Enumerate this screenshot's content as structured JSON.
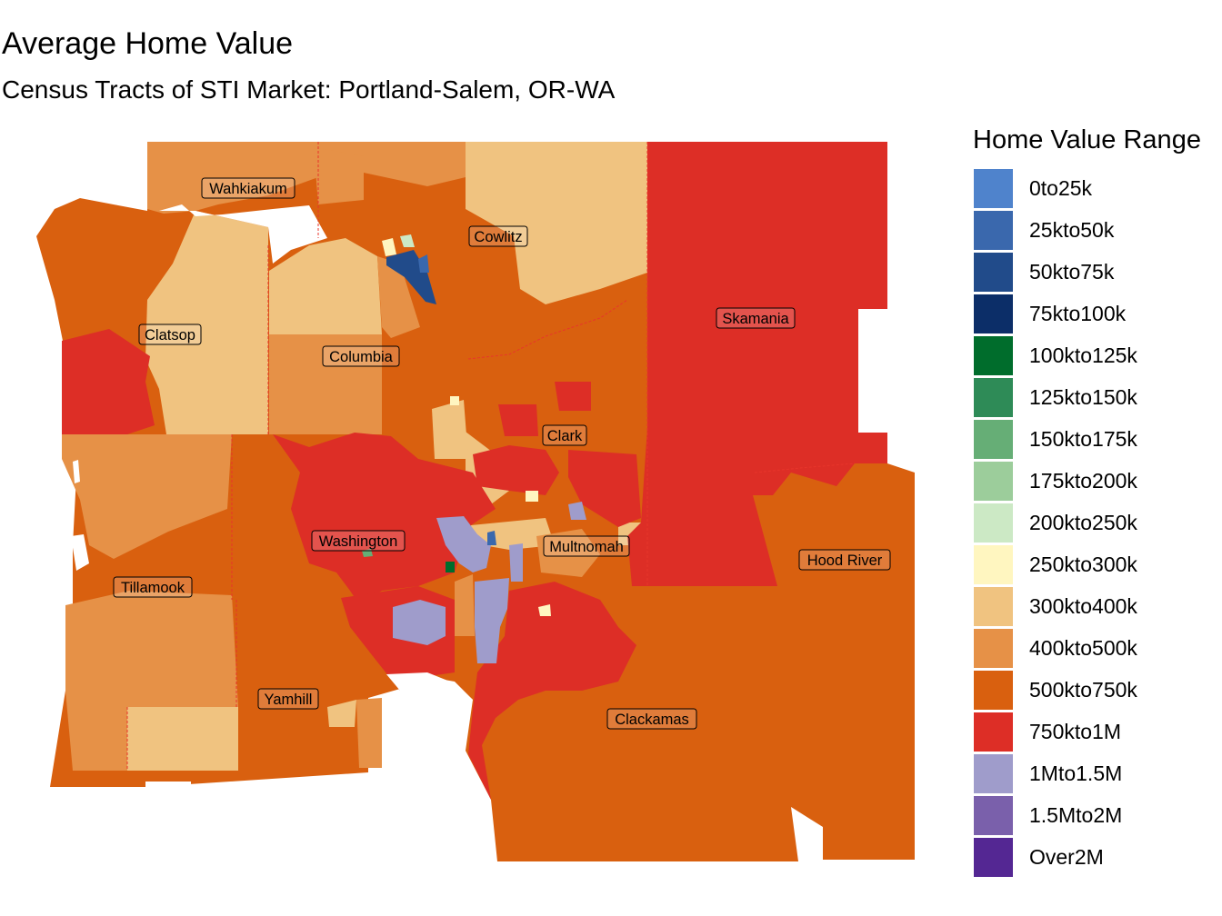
{
  "title": "Average Home Value",
  "subtitle": "Census Tracts of STI Market: Portland-Salem, OR-WA",
  "legend": {
    "title": "Home Value Range",
    "items": [
      {
        "label": "0to25k",
        "color": "#4f83cc"
      },
      {
        "label": "25kto50k",
        "color": "#3a68ad"
      },
      {
        "label": "50kto75k",
        "color": "#214b8a"
      },
      {
        "label": "75kto100k",
        "color": "#0c2e68"
      },
      {
        "label": "100kto125k",
        "color": "#006d2c"
      },
      {
        "label": "125kto150k",
        "color": "#2e8b57"
      },
      {
        "label": "150kto175k",
        "color": "#66ae76"
      },
      {
        "label": "175kto200k",
        "color": "#9ccd9b"
      },
      {
        "label": "200kto250k",
        "color": "#cce9c5"
      },
      {
        "label": "250kto300k",
        "color": "#fff6c0"
      },
      {
        "label": "300kto400k",
        "color": "#f0c380"
      },
      {
        "label": "400kto500k",
        "color": "#e69147"
      },
      {
        "label": "500kto750k",
        "color": "#d9600f"
      },
      {
        "label": "750kto1M",
        "color": "#dd2e26"
      },
      {
        "label": "1Mto1.5M",
        "color": "#9f9ccb"
      },
      {
        "label": "1.5Mto2M",
        "color": "#7a60ab"
      },
      {
        "label": "Over2M",
        "color": "#542793"
      }
    ]
  },
  "counties": {
    "wahkiakum": "Wahkiakum",
    "cowlitz": "Cowlitz",
    "skamania": "Skamania",
    "clatsop": "Clatsop",
    "columbia": "Columbia",
    "clark": "Clark",
    "washington": "Washington",
    "multnomah": "Multnomah",
    "hood_river": "Hood River",
    "tillamook": "Tillamook",
    "yamhill": "Yamhill",
    "clackamas": "Clackamas"
  }
}
